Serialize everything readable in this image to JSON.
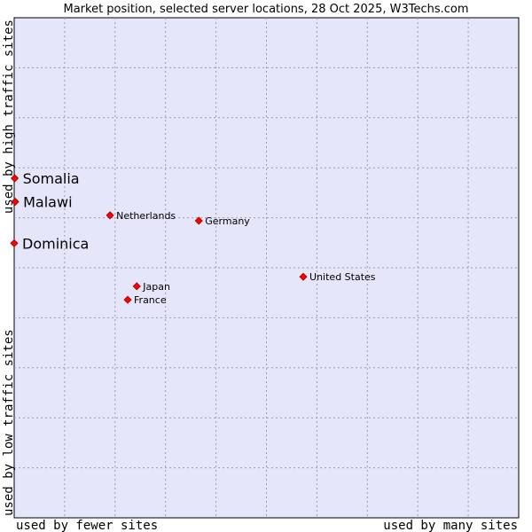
{
  "chart_data": {
    "type": "scatter",
    "title": "Market position, selected server locations, 28 Oct 2025, W3Techs.com",
    "xlabel_left": "used by fewer sites",
    "xlabel_right": "used by many sites",
    "ylabel_top": "used by high traffic sites",
    "ylabel_bottom": "used by low traffic sites",
    "xlim": [
      0,
      100
    ],
    "ylim": [
      0,
      100
    ],
    "grid": true,
    "point_color": "#ff0000",
    "plot_background": "#e6e6fa",
    "points": [
      {
        "name": "Somalia",
        "x": 0.1,
        "y": 67.9,
        "highlight": true
      },
      {
        "name": "Malawi",
        "x": 0.2,
        "y": 63.2,
        "highlight": true
      },
      {
        "name": "Dominica",
        "x": 0.0,
        "y": 54.9,
        "highlight": true
      },
      {
        "name": "Netherlands",
        "x": 19.0,
        "y": 60.5,
        "highlight": false
      },
      {
        "name": "Germany",
        "x": 36.6,
        "y": 59.4,
        "highlight": false
      },
      {
        "name": "United States",
        "x": 57.3,
        "y": 48.2,
        "highlight": false
      },
      {
        "name": "Japan",
        "x": 24.3,
        "y": 46.3,
        "highlight": false
      },
      {
        "name": "France",
        "x": 22.5,
        "y": 43.6,
        "highlight": false
      }
    ]
  }
}
